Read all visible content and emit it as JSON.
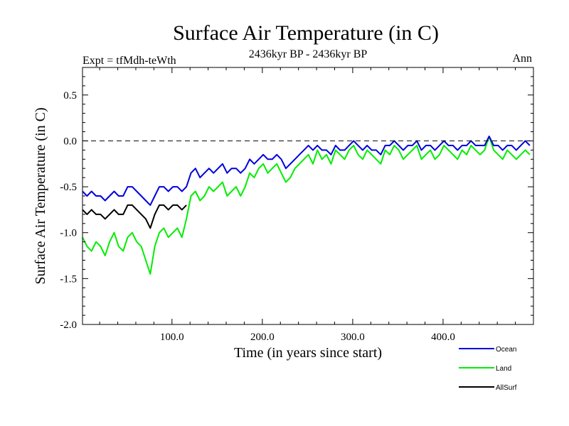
{
  "chart_data": {
    "type": "line",
    "title": "Surface Air Temperature (in C)",
    "subtitle_left": "Expt = tfMdh-teWth",
    "subtitle_center": "2436kyr BP - 2436kyr BP",
    "subtitle_right": "Ann",
    "xlabel": "Time (in years since start)",
    "ylabel": "Surface Air Temperature (in C)",
    "xlim": [
      1,
      500
    ],
    "ylim": [
      -2.0,
      0.8
    ],
    "xticks": [
      100,
      200,
      300,
      400
    ],
    "xtick_labels": [
      "100.0",
      "200.0",
      "300.0",
      "400.0"
    ],
    "yticks": [
      -2.0,
      -1.5,
      -1.0,
      -0.5,
      0.0,
      0.5
    ],
    "ytick_labels": [
      "-2.0",
      "-1.5",
      "-1.0",
      "-0.5",
      "0.0",
      "0.5"
    ],
    "reference_line": 0.0,
    "series": [
      {
        "name": "Land",
        "color": "#00ee00",
        "x_start": 1,
        "x_step": 5,
        "values": [
          -1.05,
          -1.15,
          -1.2,
          -1.1,
          -1.15,
          -1.25,
          -1.1,
          -1.0,
          -1.15,
          -1.2,
          -1.05,
          -1.0,
          -1.1,
          -1.15,
          -1.3,
          -1.45,
          -1.15,
          -1.0,
          -0.95,
          -1.05,
          -1.0,
          -0.95,
          -1.05,
          -0.85,
          -0.6,
          -0.55,
          -0.65,
          -0.6,
          -0.5,
          -0.55,
          -0.5,
          -0.45,
          -0.6,
          -0.55,
          -0.5,
          -0.6,
          -0.5,
          -0.35,
          -0.4,
          -0.3,
          -0.25,
          -0.35,
          -0.3,
          -0.25,
          -0.35,
          -0.45,
          -0.4,
          -0.3,
          -0.25,
          -0.2,
          -0.15,
          -0.25,
          -0.1,
          -0.2,
          -0.15,
          -0.25,
          -0.1,
          -0.15,
          -0.2,
          -0.1,
          -0.05,
          -0.15,
          -0.2,
          -0.1,
          -0.15,
          -0.2,
          -0.25,
          -0.1,
          -0.15,
          -0.05,
          -0.1,
          -0.2,
          -0.15,
          -0.1,
          -0.05,
          -0.2,
          -0.15,
          -0.1,
          -0.2,
          -0.15,
          -0.05,
          -0.1,
          -0.15,
          -0.2,
          -0.1,
          -0.15,
          -0.05,
          -0.1,
          -0.15,
          -0.1,
          0.05,
          -0.1,
          -0.15,
          -0.2,
          -0.1,
          -0.15,
          -0.2,
          -0.15,
          -0.1,
          -0.15
        ]
      },
      {
        "name": "Ocean",
        "color": "#0000dd",
        "x_start": 1,
        "x_step": 5,
        "values": [
          -0.55,
          -0.6,
          -0.55,
          -0.6,
          -0.6,
          -0.65,
          -0.6,
          -0.55,
          -0.6,
          -0.6,
          -0.5,
          -0.5,
          -0.55,
          -0.6,
          -0.65,
          -0.7,
          -0.6,
          -0.5,
          -0.5,
          -0.55,
          -0.5,
          -0.5,
          -0.55,
          -0.5,
          -0.35,
          -0.3,
          -0.4,
          -0.35,
          -0.3,
          -0.35,
          -0.3,
          -0.25,
          -0.35,
          -0.3,
          -0.3,
          -0.35,
          -0.3,
          -0.2,
          -0.25,
          -0.2,
          -0.15,
          -0.2,
          -0.2,
          -0.15,
          -0.2,
          -0.3,
          -0.25,
          -0.2,
          -0.15,
          -0.1,
          -0.05,
          -0.1,
          -0.05,
          -0.1,
          -0.1,
          -0.15,
          -0.05,
          -0.1,
          -0.1,
          -0.05,
          0.0,
          -0.05,
          -0.1,
          -0.05,
          -0.1,
          -0.1,
          -0.15,
          -0.05,
          -0.05,
          0.0,
          -0.05,
          -0.1,
          -0.05,
          -0.05,
          0.0,
          -0.1,
          -0.05,
          -0.05,
          -0.1,
          -0.05,
          0.0,
          -0.05,
          -0.05,
          -0.1,
          -0.05,
          -0.05,
          0.0,
          -0.05,
          -0.05,
          -0.05,
          0.05,
          -0.05,
          -0.05,
          -0.1,
          -0.05,
          -0.05,
          -0.1,
          -0.05,
          0.0,
          -0.05
        ]
      },
      {
        "name": "AllSurf",
        "color": "#000000",
        "x_start": 1,
        "x_step": 5,
        "values": [
          -0.75,
          -0.8,
          -0.75,
          -0.8,
          -0.8,
          -0.85,
          -0.8,
          -0.75,
          -0.8,
          -0.8,
          -0.7,
          -0.7,
          -0.75,
          -0.8,
          -0.85,
          -0.95,
          -0.8,
          -0.7,
          -0.7,
          -0.75,
          -0.7,
          -0.7,
          -0.75,
          -0.7
        ]
      }
    ],
    "legend": [
      {
        "label": "Ocean",
        "color": "#0000dd"
      },
      {
        "label": "Land",
        "color": "#00ee00"
      },
      {
        "label": "AllSurf",
        "color": "#000000"
      }
    ]
  }
}
